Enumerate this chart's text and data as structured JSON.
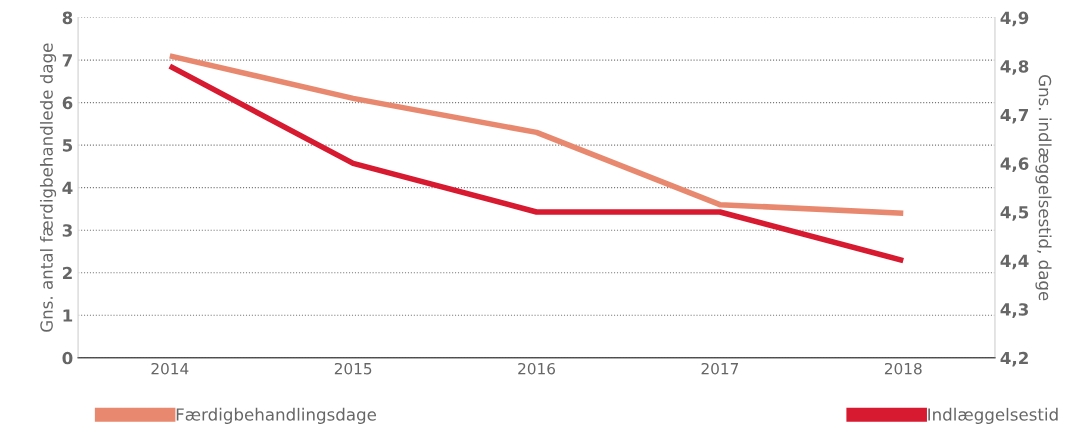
{
  "chart_data": {
    "type": "line",
    "categories": [
      "2014",
      "2015",
      "2016",
      "2017",
      "2018"
    ],
    "ylabel": "Gns. antal færdigbehandlede dage",
    "y2label": "Gns. indlæggelsestid, dage",
    "series": [
      {
        "name": "Færdigbehandlingsdage",
        "color": "#e8896f",
        "values": [
          7.1,
          6.1,
          5.3,
          3.6,
          3.4
        ]
      },
      {
        "name": "Indlæggelsestid",
        "color": "#d71a30",
        "values": [
          4.8,
          4.6,
          4.5,
          4.5,
          4.4
        ],
        "axis": "y2"
      }
    ],
    "ylim": [
      0,
      8
    ],
    "yticks": [
      0,
      1,
      2,
      3,
      4,
      5,
      6,
      7,
      8
    ],
    "y2lim": [
      4.2,
      4.9
    ],
    "y2ticks": [
      {
        "value": 4.2,
        "label": "4,2"
      },
      {
        "value": 4.3,
        "label": "4,3"
      },
      {
        "value": 4.4,
        "label": "4,4"
      },
      {
        "value": 4.5,
        "label": "4,5"
      },
      {
        "value": 4.6,
        "label": "4,6"
      },
      {
        "value": 4.7,
        "label": "4,7"
      },
      {
        "value": 4.8,
        "label": "4,8"
      },
      {
        "value": 4.9,
        "label": "4,9"
      }
    ],
    "grid": "y",
    "legend": "bottom",
    "marker": "none",
    "line_style": "solid"
  }
}
